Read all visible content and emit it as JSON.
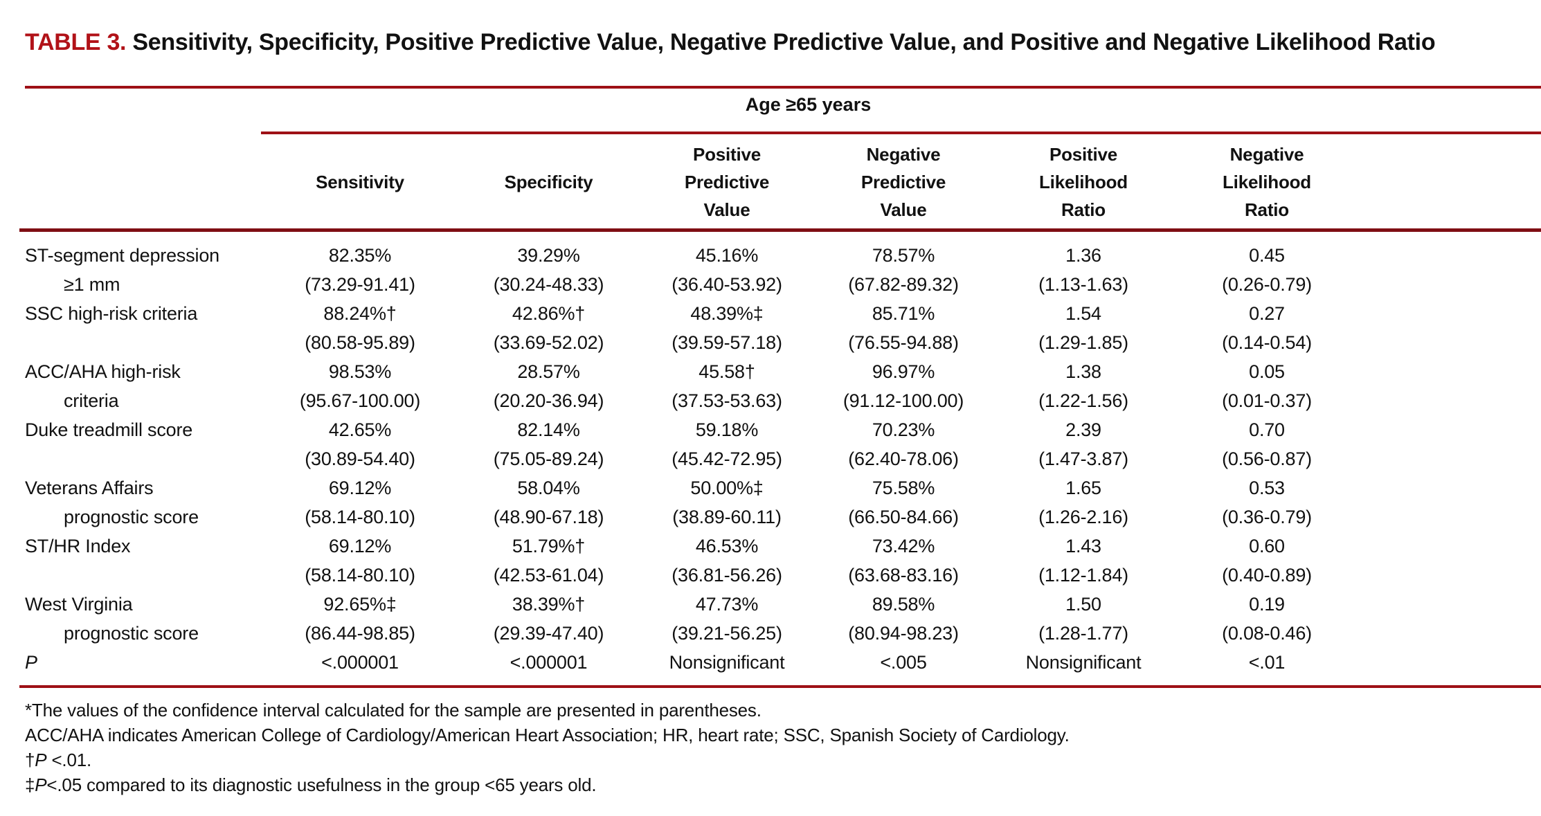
{
  "title": {
    "label": "TABLE 3.",
    "text": "Sensitivity, Specificity, Positive Predictive Value, Negative Predictive Value, and Positive and Negative Likelihood Ratio"
  },
  "colors": {
    "accent_red": "#B11218",
    "rule_red": "#9E1016",
    "text": "#111111",
    "background": "#FFFFFF"
  },
  "table": {
    "group_header": "Age ≥65 years",
    "columns": [
      "Sensitivity",
      "Specificity",
      "Positive\nPredictive\nValue",
      "Negative\nPredictive\nValue",
      "Positive\nLikelihood\nRatio",
      "Negative\nLikelihood\nRatio"
    ],
    "rows": [
      {
        "label1": "ST-segment depression",
        "label2": "≥1 mm",
        "values": [
          "82.35%",
          "39.29%",
          "45.16%",
          "78.57%",
          "1.36",
          "0.45"
        ],
        "ci": [
          "(73.29-91.41)",
          "(30.24-48.33)",
          "(36.40-53.92)",
          "(67.82-89.32)",
          "(1.13-1.63)",
          "(0.26-0.79)"
        ]
      },
      {
        "label1": "SSC high-risk criteria",
        "label2": "",
        "values": [
          "88.24%†",
          "42.86%†",
          "48.39%‡",
          "85.71%",
          "1.54",
          "0.27"
        ],
        "ci": [
          "(80.58-95.89)",
          "(33.69-52.02)",
          "(39.59-57.18)",
          "(76.55-94.88)",
          "(1.29-1.85)",
          "(0.14-0.54)"
        ]
      },
      {
        "label1": "ACC/AHA high-risk",
        "label2": "criteria",
        "values": [
          "98.53%",
          "28.57%",
          "45.58†",
          "96.97%",
          "1.38",
          "0.05"
        ],
        "ci": [
          "(95.67-100.00)",
          "(20.20-36.94)",
          "(37.53-53.63)",
          "(91.12-100.00)",
          "(1.22-1.56)",
          "(0.01-0.37)"
        ]
      },
      {
        "label1": "Duke treadmill score",
        "label2": "",
        "values": [
          "42.65%",
          "82.14%",
          "59.18%",
          "70.23%",
          "2.39",
          "0.70"
        ],
        "ci": [
          "(30.89-54.40)",
          "(75.05-89.24)",
          "(45.42-72.95)",
          "(62.40-78.06)",
          "(1.47-3.87)",
          "(0.56-0.87)"
        ]
      },
      {
        "label1": "Veterans Affairs",
        "label2": "prognostic score",
        "values": [
          "69.12%",
          "58.04%",
          "50.00%‡",
          "75.58%",
          "1.65",
          "0.53"
        ],
        "ci": [
          "(58.14-80.10)",
          "(48.90-67.18)",
          "(38.89-60.11)",
          "(66.50-84.66)",
          "(1.26-2.16)",
          "(0.36-0.79)"
        ]
      },
      {
        "label1": "ST/HR Index",
        "label2": "",
        "values": [
          "69.12%",
          "51.79%†",
          "46.53%",
          "73.42%",
          "1.43",
          "0.60"
        ],
        "ci": [
          "(58.14-80.10)",
          "(42.53-61.04)",
          "(36.81-56.26)",
          "(63.68-83.16)",
          "(1.12-1.84)",
          "(0.40-0.89)"
        ]
      },
      {
        "label1": "West Virginia",
        "label2": "prognostic score",
        "values": [
          "92.65%‡",
          "38.39%†",
          "47.73%",
          "89.58%",
          "1.50",
          "0.19"
        ],
        "ci": [
          "(86.44-98.85)",
          "(29.39-47.40)",
          "(39.21-56.25)",
          "(80.94-98.23)",
          "(1.28-1.77)",
          "(0.08-0.46)"
        ]
      }
    ],
    "p_row": {
      "label": "P",
      "values": [
        "<.000001",
        "<.000001",
        "Nonsignificant",
        "<.005",
        "Nonsignificant",
        "<.01"
      ]
    }
  },
  "footnotes": [
    {
      "pre": "*The values of the confidence interval calculated for the sample are presented in parentheses.",
      "italic": "",
      "post": ""
    },
    {
      "pre": "ACC/AHA indicates American College of Cardiology/American Heart Association; HR, heart rate; SSC, Spanish Society of Cardiology.",
      "italic": "",
      "post": ""
    },
    {
      "pre": "†",
      "italic": "P",
      "post": " <.01."
    },
    {
      "pre": "‡",
      "italic": "P",
      "post": "<.05 compared to its diagnostic usefulness in the group <65 years old."
    }
  ]
}
